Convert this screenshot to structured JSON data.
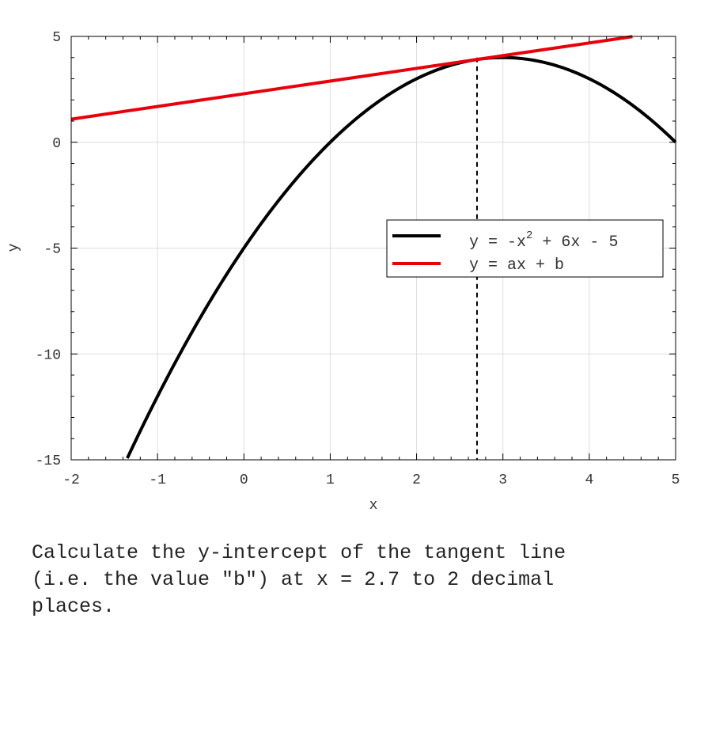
{
  "chart_data": {
    "type": "line",
    "xlabel": "x",
    "ylabel": "y",
    "xlim": [
      -2,
      5
    ],
    "ylim": [
      -15,
      5
    ],
    "x_ticks": [
      -2,
      -1,
      0,
      1,
      2,
      3,
      4,
      5
    ],
    "y_ticks": [
      -15,
      -10,
      -5,
      0,
      5
    ],
    "grid": true,
    "legend_position": "center-right",
    "series": [
      {
        "name": "y = -x^2 + 6x - 5",
        "legend_main": "y = -x",
        "legend_sup": "2",
        "legend_rest": " + 6x - 5",
        "function": "-x^2 + 6x - 5",
        "x_range": [
          -1.35,
          5
        ],
        "color": "#000000"
      },
      {
        "name": "y = ax + b",
        "function": "0.6x + 2.29",
        "x_range": [
          -2,
          4.5
        ],
        "color": "#e8000b"
      }
    ],
    "tangent_point_x": 2.7,
    "vertical_marker_x": 2.7
  },
  "question": {
    "text": "Calculate the y-intercept of the tangent line\n(i.e. the value \"b\") at x = 2.7 to 2 decimal\nplaces."
  }
}
